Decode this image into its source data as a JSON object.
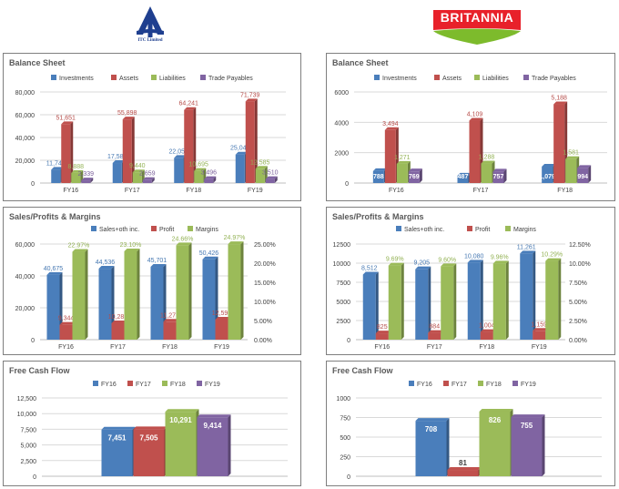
{
  "logos": {
    "itc": {
      "caption": "ITC Limited"
    },
    "britannia": {
      "text": "BRITANNIA"
    }
  },
  "colors": {
    "blue": "#4a7ebb",
    "red": "#c0504d",
    "green": "#9bbb59",
    "purple": "#8064a2",
    "grid": "#d9d9d9",
    "axis": "#bfbfbf",
    "text": "#404040"
  },
  "chart_data": [
    {
      "id": "itc-balance-sheet",
      "type": "bar",
      "title": "Balance Sheet",
      "categories": [
        "FY16",
        "FY17",
        "FY18",
        "FY19"
      ],
      "series": [
        {
          "name": "Investments",
          "values": [
            11748,
            17581,
            22053,
            25043
          ],
          "labels": [
            "11,748",
            "17,581",
            "22,053",
            "25,043"
          ]
        },
        {
          "name": "Assets",
          "values": [
            51651,
            55898,
            64241,
            71739
          ],
          "labels": [
            "51,651",
            "55,898",
            "64,241",
            "71,739"
          ]
        },
        {
          "name": "Liabilities",
          "values": [
            8888,
            9440,
            10695,
            12585
          ],
          "labels": [
            "8,888",
            "9,440",
            "10,695",
            "12,585"
          ]
        },
        {
          "name": "Trade Payables",
          "values": [
            2339,
            2659,
            3496,
            3510
          ],
          "labels": [
            "2,339",
            "2,659",
            "3,496",
            "3,510"
          ]
        }
      ],
      "ylim": [
        0,
        80000
      ],
      "yticks": [
        "0",
        "20,000",
        "40,000",
        "60,000",
        "80,000"
      ],
      "grid": true,
      "legend": "top"
    },
    {
      "id": "britannia-balance-sheet",
      "type": "bar",
      "title": "Balance Sheet",
      "categories": [
        "FY16",
        "FY17",
        "FY18"
      ],
      "series": [
        {
          "name": "Investments",
          "values": [
            788,
            487,
            1079
          ],
          "labels": [
            "788",
            "487",
            "1,079"
          ]
        },
        {
          "name": "Assets",
          "values": [
            3494,
            4109,
            5188
          ],
          "labels": [
            "3,494",
            "4,109",
            "5,188"
          ]
        },
        {
          "name": "Liabilities",
          "values": [
            1271,
            1288,
            1581
          ],
          "labels": [
            "1,271",
            "1,288",
            "1,581"
          ]
        },
        {
          "name": "Trade Payables",
          "values": [
            769,
            757,
            994
          ],
          "labels": [
            "769",
            "757",
            "994"
          ]
        }
      ],
      "ylim": [
        0,
        6000
      ],
      "yticks": [
        "0",
        "2000",
        "4000",
        "6000"
      ],
      "grid": true,
      "legend": "top"
    },
    {
      "id": "itc-sales-profit-margins",
      "type": "bar",
      "title": "Sales/Profits & Margins",
      "categories": [
        "FY16",
        "FY17",
        "FY18",
        "FY19"
      ],
      "series": [
        {
          "name": "Sales+oth inc.",
          "values": [
            40675,
            44536,
            45701,
            50426
          ],
          "labels": [
            "40,675",
            "44,536",
            "45,701",
            "50,426"
          ],
          "axis": "left"
        },
        {
          "name": "Profit",
          "values": [
            9344,
            10289,
            11271,
            12592
          ],
          "labels": [
            "9,344",
            "10,289",
            "11,271",
            "12,592"
          ],
          "axis": "left"
        },
        {
          "name": "Margins",
          "values": [
            22.97,
            23.1,
            24.66,
            24.97
          ],
          "labels": [
            "22.97%",
            "23.10%",
            "24.66%",
            "24.97%"
          ],
          "axis": "right"
        }
      ],
      "ylim": [
        0,
        60000
      ],
      "yticks": [
        "0",
        "20,000",
        "40,000",
        "60,000"
      ],
      "y2lim": [
        0,
        25
      ],
      "y2ticks": [
        "0.00%",
        "5.00%",
        "10.00%",
        "15.00%",
        "20.00%",
        "25.00%"
      ],
      "grid": true,
      "legend": "top"
    },
    {
      "id": "britannia-sales-profit-margins",
      "type": "bar",
      "title": "Sales/Profits & Margins",
      "categories": [
        "FY16",
        "FY17",
        "FY18",
        "FY19"
      ],
      "series": [
        {
          "name": "Sales+oth inc.",
          "values": [
            8512,
            9205,
            10080,
            11261
          ],
          "labels": [
            "8,512",
            "9,205",
            "10,080",
            "11,261"
          ],
          "axis": "left"
        },
        {
          "name": "Profit",
          "values": [
            825,
            884,
            1004,
            1159
          ],
          "labels": [
            "825",
            "884",
            "1,004",
            "1,159"
          ],
          "axis": "left"
        },
        {
          "name": "Margins",
          "values": [
            9.69,
            9.6,
            9.96,
            10.29
          ],
          "labels": [
            "9.69%",
            "9.60%",
            "9.96%",
            "10.29%"
          ],
          "axis": "right"
        }
      ],
      "ylim": [
        0,
        12500
      ],
      "yticks": [
        "0",
        "2500",
        "5000",
        "7500",
        "10000",
        "12500"
      ],
      "y2lim": [
        0,
        12.5
      ],
      "y2ticks": [
        "0.00%",
        "2.50%",
        "5.00%",
        "7.50%",
        "10.00%",
        "12.50%"
      ],
      "grid": true,
      "legend": "top"
    },
    {
      "id": "itc-free-cash-flow",
      "type": "bar",
      "title": "Free Cash Flow",
      "categories": [
        ""
      ],
      "series": [
        {
          "name": "FY16",
          "values": [
            7451
          ],
          "labels": [
            "7,451"
          ]
        },
        {
          "name": "FY17",
          "values": [
            7505
          ],
          "labels": [
            "7,505"
          ]
        },
        {
          "name": "FY18",
          "values": [
            10291
          ],
          "labels": [
            "10,291"
          ]
        },
        {
          "name": "FY19",
          "values": [
            9414
          ],
          "labels": [
            "9,414"
          ]
        }
      ],
      "ylim": [
        0,
        12500
      ],
      "yticks": [
        "0",
        "2,500",
        "5,000",
        "7,500",
        "10,000",
        "12,500"
      ],
      "grid": true,
      "legend": "top"
    },
    {
      "id": "britannia-free-cash-flow",
      "type": "bar",
      "title": "Free Cash Flow",
      "categories": [
        ""
      ],
      "series": [
        {
          "name": "FY16",
          "values": [
            708
          ],
          "labels": [
            "708"
          ]
        },
        {
          "name": "FY17",
          "values": [
            81
          ],
          "labels": [
            "81"
          ]
        },
        {
          "name": "FY18",
          "values": [
            826
          ],
          "labels": [
            "826"
          ]
        },
        {
          "name": "FY19",
          "values": [
            755
          ],
          "labels": [
            "755"
          ]
        }
      ],
      "ylim": [
        0,
        1000
      ],
      "yticks": [
        "0",
        "250",
        "500",
        "750",
        "1000"
      ],
      "grid": true,
      "legend": "top"
    }
  ]
}
